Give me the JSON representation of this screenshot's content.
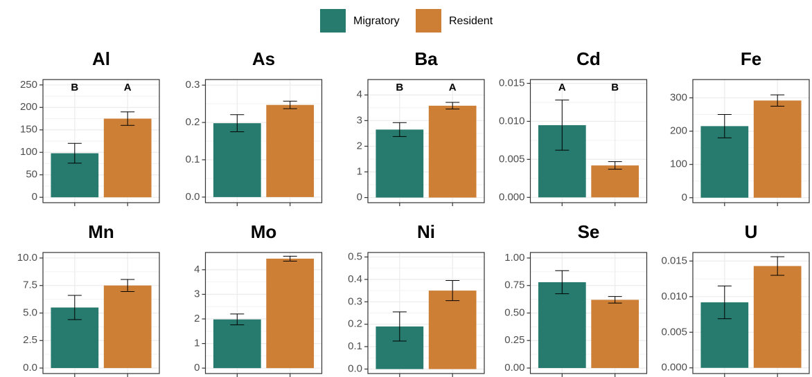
{
  "legend": [
    {
      "name": "Migratory",
      "color": "#267b6e"
    },
    {
      "name": "Resident",
      "color": "#cd7f36"
    }
  ],
  "chart_data": [
    {
      "type": "bar",
      "title": "Al",
      "values": [
        98,
        175
      ],
      "errors": [
        22,
        15
      ],
      "annotations": [
        "B",
        "A"
      ],
      "ylim": [
        -12,
        262
      ],
      "yticks": [
        0,
        50,
        100,
        150,
        200,
        250
      ],
      "grid": true
    },
    {
      "type": "bar",
      "title": "As",
      "values": [
        0.198,
        0.247
      ],
      "errors": [
        0.023,
        0.01
      ],
      "ylim": [
        -0.015,
        0.315
      ],
      "yticks": [
        {
          "value": 0,
          "label": "0.0"
        },
        0.1,
        0.2,
        0.3
      ],
      "grid": true
    },
    {
      "type": "bar",
      "title": "Ba",
      "values": [
        2.65,
        3.58
      ],
      "errors": [
        0.27,
        0.13
      ],
      "annotations": [
        "B",
        "A"
      ],
      "ylim": [
        -0.2,
        4.6
      ],
      "yticks": [
        0,
        1,
        2,
        3,
        4
      ],
      "grid": true
    },
    {
      "type": "bar",
      "title": "Cd",
      "values": [
        0.0095,
        0.0042
      ],
      "errors": [
        0.0033,
        0.0005
      ],
      "annotations": [
        "A",
        "B"
      ],
      "ylim": [
        -0.0007,
        0.0155
      ],
      "yticks": [
        {
          "value": 0,
          "label": "0.000"
        },
        0.005,
        {
          "value": 0.01,
          "label": "0.010"
        },
        0.015
      ],
      "grid": true
    },
    {
      "type": "bar",
      "title": "Fe",
      "values": [
        215,
        292
      ],
      "errors": [
        35,
        17
      ],
      "ylim": [
        -15,
        355
      ],
      "yticks": [
        0,
        100,
        200,
        300
      ],
      "grid": true
    },
    {
      "type": "bar",
      "title": "Mn",
      "values": [
        5.5,
        7.5
      ],
      "errors": [
        1.1,
        0.55
      ],
      "ylim": [
        -0.5,
        10.5
      ],
      "yticks": [
        {
          "value": 0,
          "label": "0.0"
        },
        2.5,
        {
          "value": 5,
          "label": "5.0"
        },
        7.5,
        {
          "value": 10,
          "label": "10.0"
        }
      ],
      "grid": true
    },
    {
      "type": "bar",
      "title": "Mo",
      "values": [
        1.98,
        4.45
      ],
      "errors": [
        0.22,
        0.1
      ],
      "ylim": [
        -0.22,
        4.7
      ],
      "yticks": [
        0,
        1,
        2,
        3,
        4
      ],
      "grid": true
    },
    {
      "type": "bar",
      "title": "Ni",
      "values": [
        0.19,
        0.35
      ],
      "errors": [
        0.065,
        0.045
      ],
      "ylim": [
        -0.02,
        0.52
      ],
      "yticks": [
        {
          "value": 0,
          "label": "0.0"
        },
        0.1,
        0.2,
        0.3,
        0.4,
        0.5
      ],
      "grid": true
    },
    {
      "type": "bar",
      "title": "Se",
      "values": [
        0.78,
        0.62
      ],
      "errors": [
        0.105,
        0.03
      ],
      "ylim": [
        -0.05,
        1.05
      ],
      "yticks": [
        {
          "value": 0,
          "label": "0.00"
        },
        0.25,
        {
          "value": 0.5,
          "label": "0.50"
        },
        0.75,
        {
          "value": 1,
          "label": "1.00"
        }
      ],
      "grid": true
    },
    {
      "type": "bar",
      "title": "U",
      "values": [
        0.0092,
        0.0143
      ],
      "errors": [
        0.0023,
        0.0013
      ],
      "ylim": [
        -0.0008,
        0.0162
      ],
      "yticks": [
        {
          "value": 0,
          "label": "0.000"
        },
        0.005,
        {
          "value": 0.01,
          "label": "0.010"
        },
        0.015
      ],
      "grid": true
    }
  ]
}
